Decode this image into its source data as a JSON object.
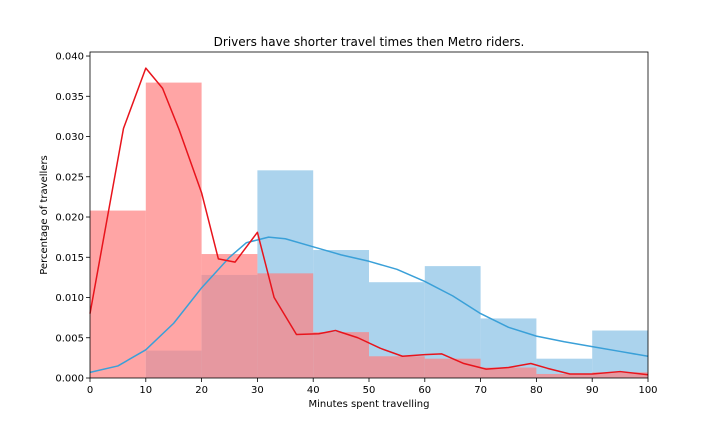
{
  "chart_data": {
    "type": "bar",
    "title": "Drivers have shorter travel times then Metro riders.",
    "xlabel": "Minutes spent travelling",
    "ylabel": "Percentage of travellers",
    "xlim": [
      0,
      100
    ],
    "ylim": [
      0,
      0.0405
    ],
    "x_ticks": [
      "0",
      "10",
      "20",
      "30",
      "40",
      "50",
      "60",
      "70",
      "80",
      "90",
      "100"
    ],
    "y_ticks": [
      "0.000",
      "0.005",
      "0.010",
      "0.015",
      "0.020",
      "0.025",
      "0.030",
      "0.035",
      "0.040"
    ],
    "grid": false,
    "legend": "none",
    "series": [
      {
        "kind": "histogram",
        "color": "#87c1e6",
        "bins": [
          [
            10,
            20,
            0.0034
          ],
          [
            20,
            30,
            0.0128
          ],
          [
            30,
            40,
            0.0258
          ],
          [
            40,
            50,
            0.0159
          ],
          [
            50,
            60,
            0.0119
          ],
          [
            60,
            70,
            0.0139
          ],
          [
            70,
            80,
            0.0074
          ],
          [
            80,
            90,
            0.0024
          ],
          [
            90,
            100,
            0.0059
          ]
        ]
      },
      {
        "kind": "histogram",
        "color": "#ff7f7f",
        "bins": [
          [
            0,
            10,
            0.0208
          ],
          [
            10,
            20,
            0.0367
          ],
          [
            20,
            30,
            0.0154
          ],
          [
            30,
            40,
            0.013
          ],
          [
            40,
            50,
            0.0057
          ],
          [
            50,
            60,
            0.0027
          ],
          [
            60,
            70,
            0.0024
          ],
          [
            70,
            80,
            0.0013
          ],
          [
            80,
            90,
            0.0005
          ],
          [
            90,
            100,
            0.0007
          ]
        ]
      },
      {
        "kind": "density",
        "color": "#3aa0d8",
        "x": [
          0,
          5,
          10,
          15,
          20,
          25,
          28,
          32,
          35,
          40,
          45,
          50,
          55,
          60,
          65,
          70,
          75,
          80,
          85,
          90,
          95,
          100
        ],
        "y": [
          0.0007,
          0.0015,
          0.0035,
          0.0068,
          0.0112,
          0.015,
          0.0168,
          0.0175,
          0.0173,
          0.0163,
          0.0153,
          0.0145,
          0.0135,
          0.012,
          0.0102,
          0.008,
          0.0063,
          0.0052,
          0.0045,
          0.0039,
          0.0033,
          0.0027
        ]
      },
      {
        "kind": "density",
        "color": "#e8141c",
        "x": [
          0,
          6,
          10,
          13,
          16,
          20,
          23,
          26,
          30,
          33,
          37,
          41,
          44,
          48,
          52,
          56,
          60,
          63,
          67,
          71,
          75,
          79,
          82,
          86,
          90,
          95,
          100
        ],
        "y": [
          0.008,
          0.031,
          0.0385,
          0.036,
          0.0308,
          0.023,
          0.0148,
          0.0144,
          0.0181,
          0.01,
          0.0054,
          0.0055,
          0.0059,
          0.005,
          0.0037,
          0.0027,
          0.0029,
          0.003,
          0.0018,
          0.0011,
          0.0013,
          0.0018,
          0.0012,
          0.0005,
          0.0005,
          0.0008,
          0.0004
        ]
      }
    ]
  }
}
